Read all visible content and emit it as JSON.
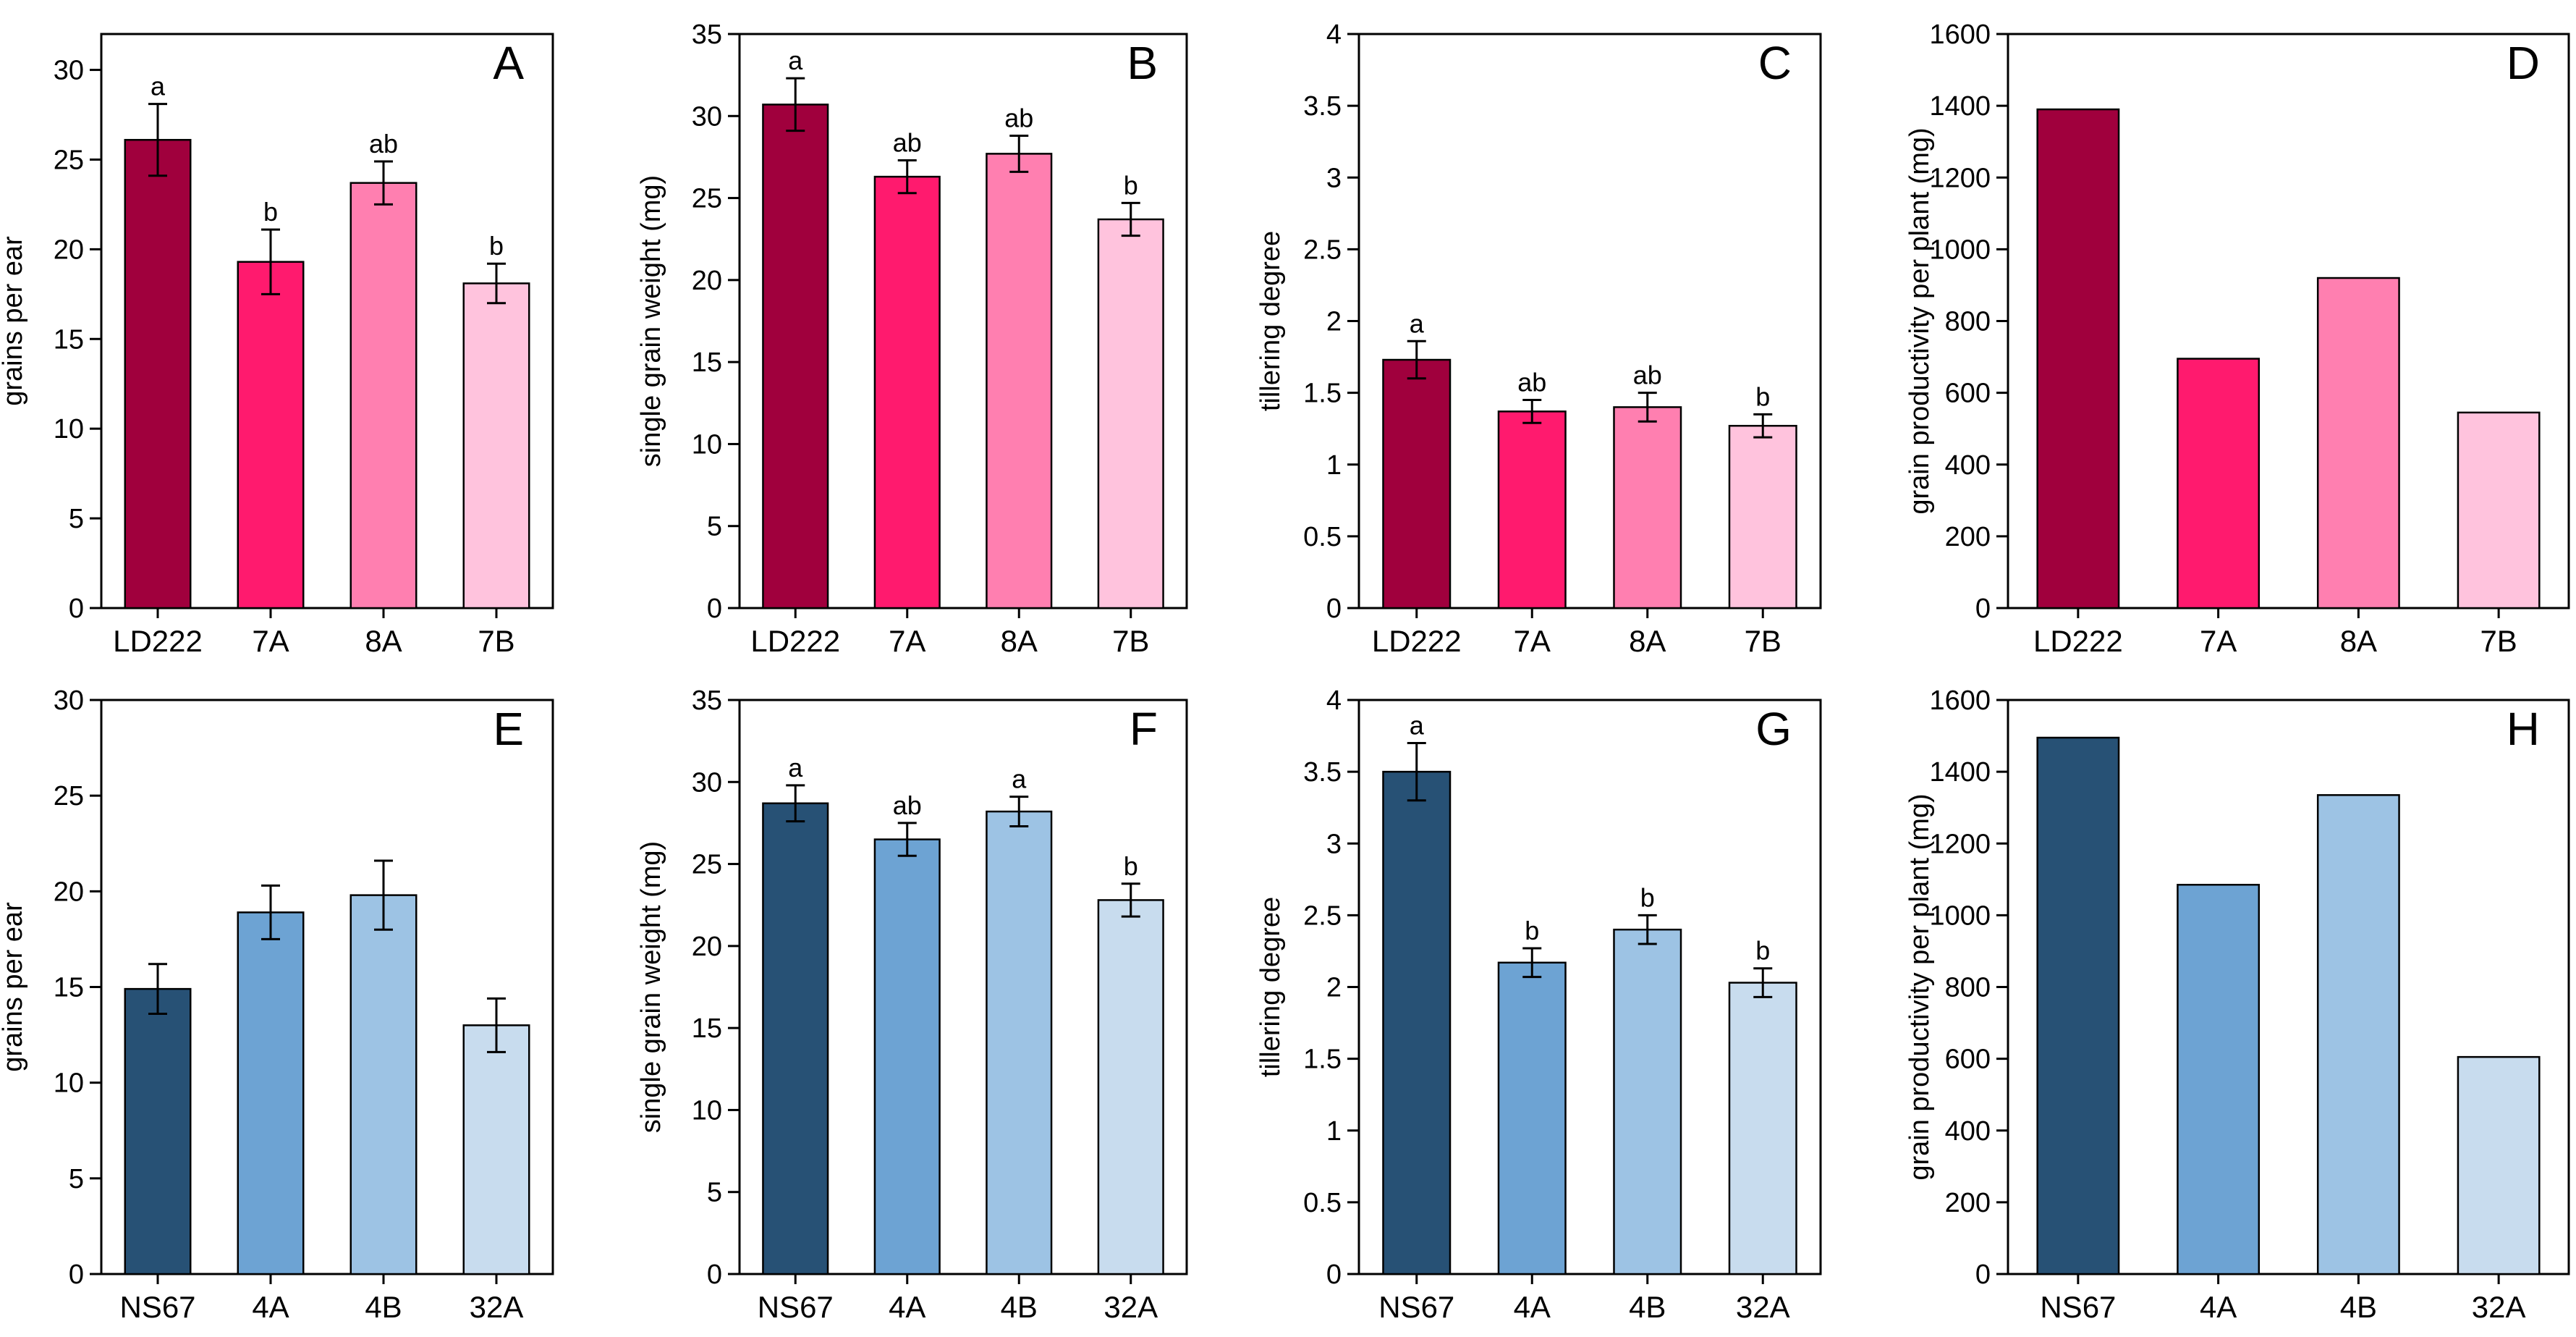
{
  "chart_data": [
    {
      "id": "A",
      "type": "bar",
      "panel_label": "A",
      "categories": [
        "LD222",
        "7A",
        "8A",
        "7B"
      ],
      "values": [
        26.1,
        19.3,
        23.7,
        18.1
      ],
      "errors": [
        2.0,
        1.8,
        1.2,
        1.1
      ],
      "significance": [
        "a",
        "b",
        "ab",
        "b"
      ],
      "ylabel": "grains per ear",
      "xlabel": "",
      "ylim": [
        0,
        32
      ],
      "yticks": [
        0,
        5,
        10,
        15,
        20,
        25,
        30
      ],
      "colors": [
        "#a0003d",
        "#ff1a6e",
        "#ff7fb0",
        "#ffc3dd"
      ]
    },
    {
      "id": "B",
      "type": "bar",
      "panel_label": "B",
      "categories": [
        "LD222",
        "7A",
        "8A",
        "7B"
      ],
      "values": [
        30.7,
        26.3,
        27.7,
        23.7
      ],
      "errors": [
        1.6,
        1.0,
        1.1,
        1.0
      ],
      "significance": [
        "a",
        "ab",
        "ab",
        "b"
      ],
      "ylabel": "single grain weight (mg)",
      "xlabel": "",
      "ylim": [
        0,
        35
      ],
      "yticks": [
        0,
        5,
        10,
        15,
        20,
        25,
        30,
        35
      ],
      "colors": [
        "#a0003d",
        "#ff1a6e",
        "#ff7fb0",
        "#ffc3dd"
      ]
    },
    {
      "id": "C",
      "type": "bar",
      "panel_label": "C",
      "categories": [
        "LD222",
        "7A",
        "8A",
        "7B"
      ],
      "values": [
        1.73,
        1.37,
        1.4,
        1.27
      ],
      "errors": [
        0.13,
        0.08,
        0.1,
        0.08
      ],
      "significance": [
        "a",
        "ab",
        "ab",
        "b"
      ],
      "ylabel": "tillering degree",
      "xlabel": "",
      "ylim": [
        0,
        4
      ],
      "yticks": [
        0,
        0.5,
        1,
        1.5,
        2,
        2.5,
        3,
        3.5,
        4
      ],
      "colors": [
        "#a0003d",
        "#ff1a6e",
        "#ff7fb0",
        "#ffc3dd"
      ]
    },
    {
      "id": "D",
      "type": "bar",
      "panel_label": "D",
      "categories": [
        "LD222",
        "7A",
        "8A",
        "7B"
      ],
      "values": [
        1390,
        695,
        920,
        545
      ],
      "errors": [],
      "significance": [],
      "ylabel": "grain productivity per plant (mg)",
      "xlabel": "",
      "ylim": [
        0,
        1600
      ],
      "yticks": [
        0,
        200,
        400,
        600,
        800,
        1000,
        1200,
        1400,
        1600
      ],
      "colors": [
        "#a0003d",
        "#ff1a6e",
        "#ff7fb0",
        "#ffc3dd"
      ]
    },
    {
      "id": "E",
      "type": "bar",
      "panel_label": "E",
      "categories": [
        "NS67",
        "4A",
        "4B",
        "32A"
      ],
      "values": [
        14.9,
        18.9,
        19.8,
        13.0
      ],
      "errors": [
        1.3,
        1.4,
        1.8,
        1.4
      ],
      "significance": [],
      "ylabel": "grains per ear",
      "xlabel": "",
      "ylim": [
        0,
        30
      ],
      "yticks": [
        0,
        5,
        10,
        15,
        20,
        25,
        30
      ],
      "colors": [
        "#275175",
        "#6da3d3",
        "#9dc3e4",
        "#c8dcee"
      ]
    },
    {
      "id": "F",
      "type": "bar",
      "panel_label": "F",
      "categories": [
        "NS67",
        "4A",
        "4B",
        "32A"
      ],
      "values": [
        28.7,
        26.5,
        28.2,
        22.8
      ],
      "errors": [
        1.1,
        1.0,
        0.9,
        1.0
      ],
      "significance": [
        "a",
        "ab",
        "a",
        "b"
      ],
      "ylabel": "single grain weight (mg)",
      "xlabel": "",
      "ylim": [
        0,
        35
      ],
      "yticks": [
        0,
        5,
        10,
        15,
        20,
        25,
        30,
        35
      ],
      "colors": [
        "#275175",
        "#6da3d3",
        "#9dc3e4",
        "#c8dcee"
      ]
    },
    {
      "id": "G",
      "type": "bar",
      "panel_label": "G",
      "categories": [
        "NS67",
        "4A",
        "4B",
        "32A"
      ],
      "values": [
        3.5,
        2.17,
        2.4,
        2.03
      ],
      "errors": [
        0.2,
        0.1,
        0.1,
        0.1
      ],
      "significance": [
        "a",
        "b",
        "b",
        "b"
      ],
      "ylabel": "tillering degree",
      "xlabel": "",
      "ylim": [
        0,
        4
      ],
      "yticks": [
        0,
        0.5,
        1,
        1.5,
        2,
        2.5,
        3,
        3.5,
        4
      ],
      "colors": [
        "#275175",
        "#6da3d3",
        "#9dc3e4",
        "#c8dcee"
      ]
    },
    {
      "id": "H",
      "type": "bar",
      "panel_label": "H",
      "categories": [
        "NS67",
        "4A",
        "4B",
        "32A"
      ],
      "values": [
        1495,
        1085,
        1335,
        605
      ],
      "errors": [],
      "significance": [],
      "ylabel": "grain productivity per plant (mg)",
      "xlabel": "",
      "ylim": [
        0,
        1600
      ],
      "yticks": [
        0,
        200,
        400,
        600,
        800,
        1000,
        1200,
        1400,
        1600
      ],
      "colors": [
        "#275175",
        "#6da3d3",
        "#9dc3e4",
        "#c8dcee"
      ]
    }
  ]
}
